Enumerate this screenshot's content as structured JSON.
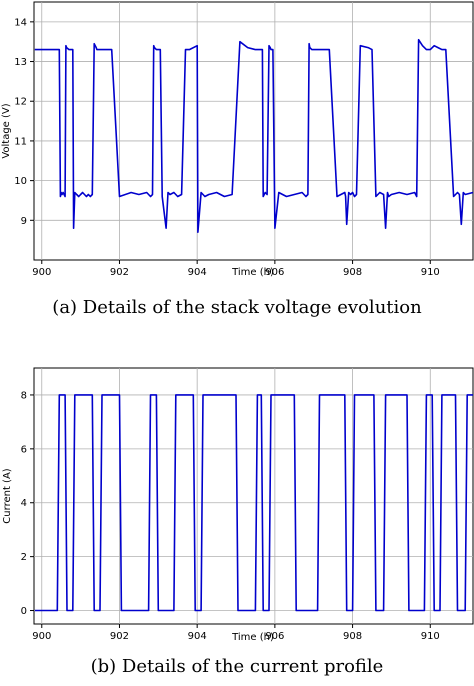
{
  "captions": {
    "a": "(a) Details of the stack voltage evolution",
    "b": "(b) Details of the current profile"
  },
  "chart_data": [
    {
      "type": "line",
      "xlabel": "Time (h)",
      "ylabel": "Voltage (V)",
      "xlim": [
        899.8,
        911.1
      ],
      "ylim": [
        8.0,
        14.5
      ],
      "xticks": [
        900,
        902,
        904,
        906,
        908,
        910
      ],
      "yticks": [
        9,
        10,
        11,
        12,
        13,
        14
      ],
      "grid": true,
      "line_color": "#0000cc",
      "series": [
        {
          "x": [
            899.82,
            900.2,
            900.4,
            900.45,
            900.48,
            900.5,
            900.52,
            900.55,
            900.6,
            900.62,
            900.64,
            900.7,
            900.8,
            900.82,
            900.85,
            900.9,
            900.95,
            901.0,
            901.05,
            901.1,
            901.15,
            901.2,
            901.25,
            901.3,
            901.35,
            901.4,
            901.42,
            901.5,
            901.6,
            901.8,
            902.0,
            902.3,
            902.5,
            902.7,
            902.8,
            902.85,
            902.88,
            902.9,
            902.95,
            903.0,
            903.05,
            903.1,
            903.2,
            903.25,
            903.3,
            903.4,
            903.5,
            903.6,
            903.7,
            903.8,
            904.0,
            904.02,
            904.1,
            904.2,
            904.3,
            904.5,
            904.7,
            904.9,
            905.1,
            905.3,
            905.5,
            905.6,
            905.65,
            905.68,
            905.7,
            905.75,
            905.8,
            905.85,
            905.88,
            905.9,
            905.95,
            906.0,
            906.1,
            906.2,
            906.3,
            906.5,
            906.7,
            906.8,
            906.85,
            906.88,
            906.9,
            906.95,
            907.0,
            907.2,
            907.4,
            907.6,
            907.8,
            907.82,
            907.85,
            907.9,
            907.95,
            908.0,
            908.05,
            908.1,
            908.2,
            908.4,
            908.5,
            908.6,
            908.7,
            908.8,
            908.85,
            908.9,
            908.93,
            909.0,
            909.2,
            909.4,
            909.6,
            909.65,
            909.7,
            909.8,
            909.85,
            909.9,
            910.0,
            910.1,
            910.2,
            910.3,
            910.4,
            910.6,
            910.7,
            910.75,
            910.8,
            910.85,
            910.9,
            911.1
          ],
          "y": [
            13.3,
            13.3,
            13.3,
            13.3,
            9.6,
            9.7,
            9.65,
            9.7,
            9.6,
            13.4,
            13.35,
            13.3,
            13.3,
            8.8,
            9.7,
            9.65,
            9.6,
            9.65,
            9.7,
            9.65,
            9.6,
            9.65,
            9.6,
            9.65,
            13.45,
            13.35,
            13.3,
            13.3,
            13.3,
            13.3,
            9.6,
            9.7,
            9.65,
            9.7,
            9.6,
            9.65,
            13.4,
            13.35,
            13.3,
            13.3,
            13.3,
            9.6,
            8.8,
            9.7,
            9.65,
            9.7,
            9.6,
            9.65,
            13.3,
            13.3,
            13.4,
            8.7,
            9.7,
            9.6,
            9.65,
            9.7,
            9.6,
            9.65,
            13.5,
            13.35,
            13.3,
            13.3,
            13.3,
            13.3,
            9.6,
            9.7,
            9.65,
            13.4,
            13.35,
            13.3,
            13.3,
            8.8,
            9.7,
            9.65,
            9.6,
            9.65,
            9.7,
            9.6,
            9.65,
            13.45,
            13.35,
            13.3,
            13.3,
            13.3,
            13.3,
            9.6,
            9.7,
            9.6,
            8.9,
            9.7,
            9.65,
            9.7,
            9.6,
            9.65,
            13.4,
            13.35,
            13.3,
            9.6,
            9.7,
            9.65,
            8.8,
            9.7,
            9.6,
            9.65,
            9.7,
            9.65,
            9.7,
            9.6,
            13.55,
            13.4,
            13.35,
            13.3,
            13.3,
            13.4,
            13.35,
            13.3,
            13.3,
            9.6,
            9.7,
            9.65,
            8.9,
            9.7,
            9.65,
            9.7
          ]
        }
      ]
    },
    {
      "type": "line",
      "xlabel": "Time (h)",
      "ylabel": "Current (A)",
      "xlim": [
        899.8,
        911.1
      ],
      "ylim": [
        -0.5,
        9.0
      ],
      "xticks": [
        900,
        902,
        904,
        906,
        908,
        910
      ],
      "yticks": [
        0,
        2,
        4,
        6,
        8
      ],
      "grid": true,
      "line_color": "#0000cc",
      "series": [
        {
          "x": [
            899.82,
            900.4,
            900.45,
            900.6,
            900.65,
            900.8,
            900.85,
            901.3,
            901.35,
            901.5,
            901.55,
            902.0,
            902.05,
            902.3,
            902.35,
            902.75,
            902.8,
            902.95,
            903.0,
            903.4,
            903.45,
            903.9,
            903.95,
            904.1,
            904.15,
            905.0,
            905.05,
            905.5,
            905.55,
            905.65,
            905.7,
            905.85,
            905.9,
            906.5,
            906.55,
            907.1,
            907.15,
            907.8,
            907.85,
            908.0,
            908.05,
            908.55,
            908.6,
            908.8,
            908.85,
            909.4,
            909.45,
            909.85,
            909.9,
            910.05,
            910.1,
            910.25,
            910.3,
            910.65,
            910.7,
            910.9,
            910.95,
            911.1
          ],
          "y": [
            0,
            0,
            8,
            8,
            0,
            0,
            8,
            8,
            0,
            0,
            8,
            8,
            0,
            0,
            0,
            0,
            8,
            8,
            0,
            0,
            8,
            8,
            0,
            0,
            8,
            8,
            0,
            0,
            8,
            8,
            0,
            0,
            8,
            8,
            0,
            0,
            8,
            8,
            0,
            0,
            8,
            8,
            0,
            0,
            8,
            8,
            0,
            0,
            8,
            8,
            0,
            0,
            8,
            8,
            0,
            0,
            8,
            8
          ]
        }
      ]
    }
  ]
}
